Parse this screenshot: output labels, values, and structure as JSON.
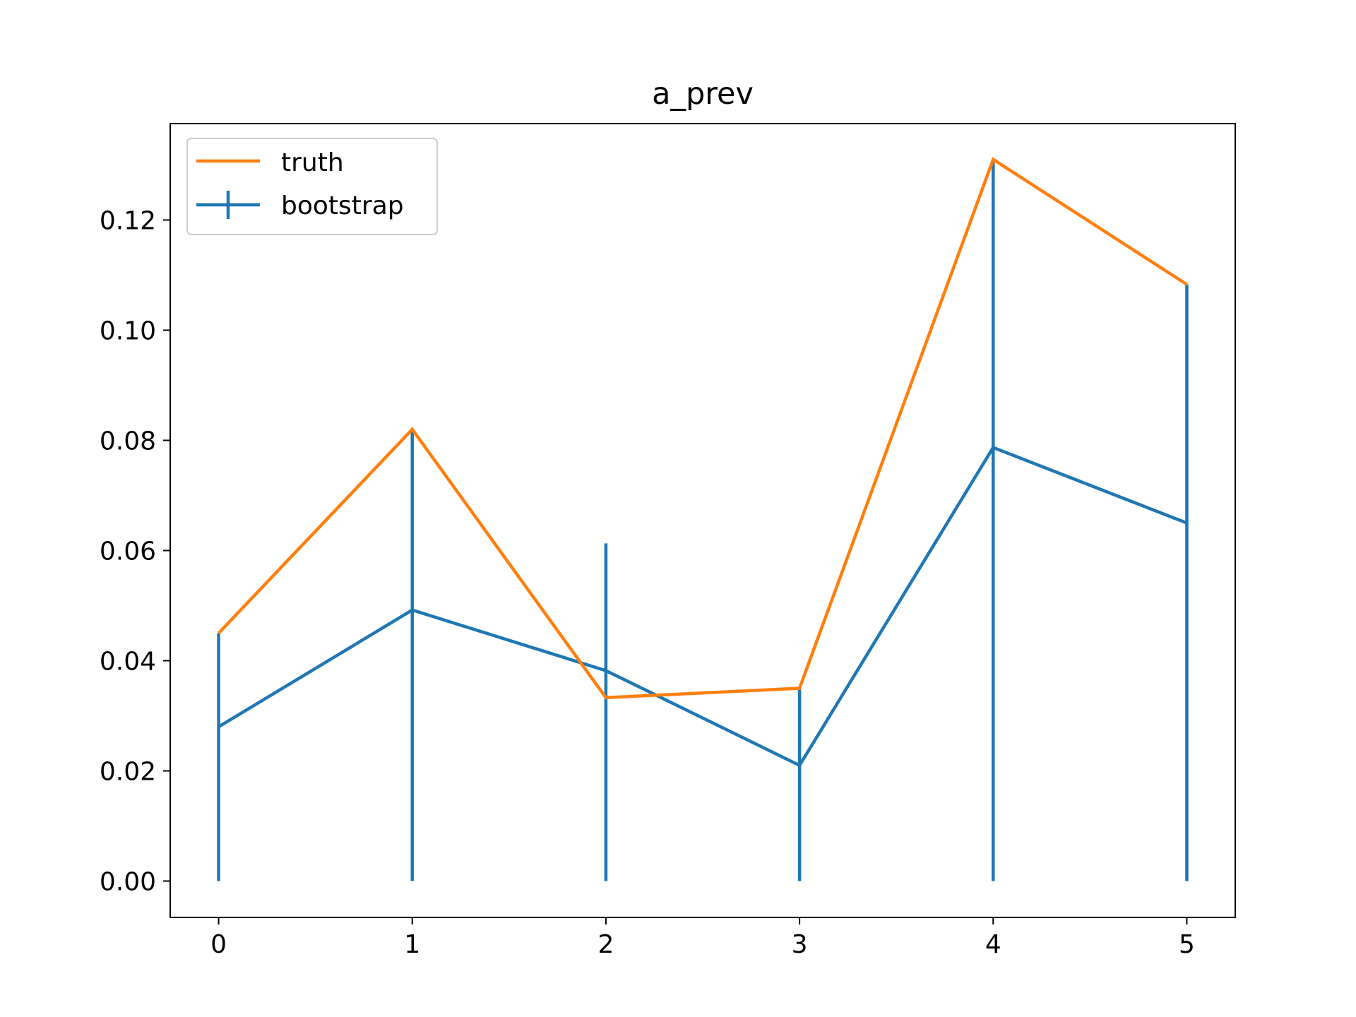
{
  "chart_data": {
    "type": "line",
    "title": "a_prev",
    "xlabel": "",
    "ylabel": "",
    "x": [
      0,
      1,
      2,
      3,
      4,
      5
    ],
    "xlim": [
      -0.25,
      5.25
    ],
    "ylim": [
      -0.0066,
      0.1375
    ],
    "x_ticks": [
      "0",
      "1",
      "2",
      "3",
      "4",
      "5"
    ],
    "y_ticks": [
      "0.00",
      "0.02",
      "0.04",
      "0.06",
      "0.08",
      "0.10",
      "0.12"
    ],
    "grid": false,
    "legend_position": "upper-left",
    "series": [
      {
        "name": "truth",
        "color": "#ff7f0e",
        "values": [
          0.045,
          0.082,
          0.0333,
          0.035,
          0.131,
          0.1083
        ]
      },
      {
        "name": "bootstrap",
        "color": "#1f77b4",
        "values": [
          0.028,
          0.0492,
          0.0382,
          0.021,
          0.0787,
          0.065
        ],
        "error_low": [
          0.0,
          0.0,
          0.0,
          0.0,
          0.0,
          0.0
        ],
        "error_high": [
          0.045,
          0.082,
          0.0613,
          0.035,
          0.131,
          0.1083
        ]
      }
    ]
  }
}
